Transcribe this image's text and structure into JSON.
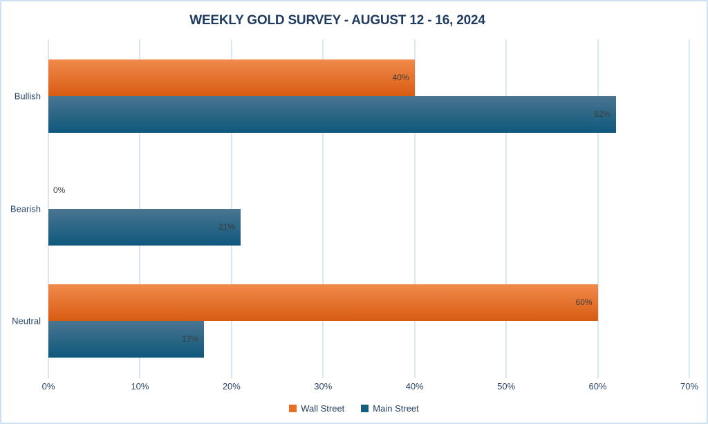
{
  "chart_data": {
    "type": "bar",
    "orientation": "horizontal",
    "title": "WEEKLY GOLD SURVEY - AUGUST 12 - 16, 2024",
    "categories": [
      "Bullish",
      "Bearish",
      "Neutral"
    ],
    "series": [
      {
        "name": "Wall Street",
        "legend_color": "#e96f28",
        "gradient_top": "#f08a4b",
        "gradient_bottom": "#d85c12",
        "values": [
          40,
          0,
          60
        ]
      },
      {
        "name": "Main Street",
        "legend_color": "#16607f",
        "gradient_top": "#4a7590",
        "gradient_bottom": "#0e587c",
        "values": [
          62,
          21,
          17
        ]
      }
    ],
    "data_labels": {
      "Bullish": {
        "Wall Street": "40%",
        "Main Street": "62%"
      },
      "Bearish": {
        "Wall Street": "0%",
        "Main Street": "21%"
      },
      "Neutral": {
        "Wall Street": "60%",
        "Main Street": "17%"
      }
    },
    "value_suffix": "%",
    "x_ticks": [
      "0%",
      "10%",
      "20%",
      "30%",
      "40%",
      "50%",
      "60%",
      "70%"
    ],
    "xlim": [
      0,
      70
    ],
    "grid": "vertical-only",
    "legend_position": "bottom-center",
    "colors": {
      "background": "#ffffff",
      "page_border": "#cfe0f2",
      "gridline": "#d9e6f4",
      "title_text": "#1e3a5f",
      "axis_text": "#2b4766",
      "data_label_text": "#3c3c3c"
    }
  }
}
